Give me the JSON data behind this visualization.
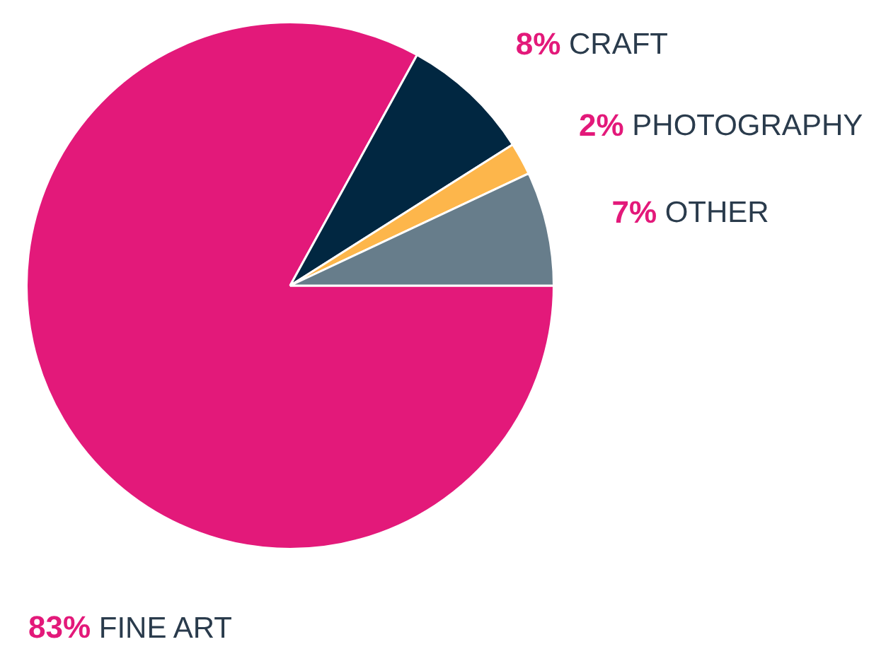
{
  "chart_data": {
    "type": "pie",
    "categories": [
      "FINE ART",
      "CRAFT",
      "PHOTOGRAPHY",
      "OTHER"
    ],
    "values": [
      83,
      8,
      2,
      7
    ],
    "value_labels": [
      "83%",
      "8%",
      "2%",
      "7%"
    ],
    "colors": [
      "#e3197a",
      "#012741",
      "#fdb64b",
      "#677d8b"
    ],
    "legend": false
  }
}
